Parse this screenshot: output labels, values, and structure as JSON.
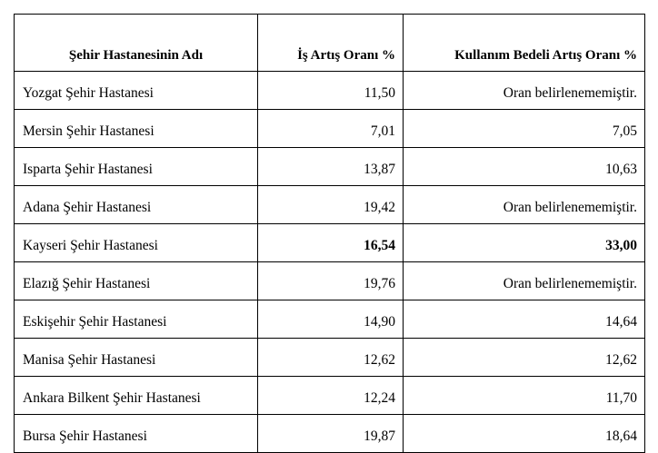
{
  "table": {
    "headers": {
      "name": "Şehir Hastanesinin Adı",
      "work_increase": "İş Artış Oranı %",
      "usage_fee_increase": "Kullanım Bedeli Artış Oranı %"
    },
    "rows": [
      {
        "name": "Yozgat Şehir Hastanesi",
        "work_increase": "11,50",
        "usage_fee_increase": "Oran belirlenememiştir."
      },
      {
        "name": "Mersin Şehir Hastanesi",
        "work_increase": "7,01",
        "usage_fee_increase": "7,05"
      },
      {
        "name": "Isparta Şehir Hastanesi",
        "work_increase": "13,87",
        "usage_fee_increase": "10,63"
      },
      {
        "name": "Adana Şehir Hastanesi",
        "work_increase": "19,42",
        "usage_fee_increase": "Oran belirlenememiştir."
      },
      {
        "name": "Kayseri Şehir Hastanesi",
        "work_increase": "16,54",
        "usage_fee_increase": "33,00"
      },
      {
        "name": "Elazığ Şehir Hastanesi",
        "work_increase": "19,76",
        "usage_fee_increase": "Oran belirlenememiştir."
      },
      {
        "name": "Eskişehir Şehir Hastanesi",
        "work_increase": "14,90",
        "usage_fee_increase": "14,64"
      },
      {
        "name": "Manisa Şehir Hastanesi",
        "work_increase": "12,62",
        "usage_fee_increase": "12,62"
      },
      {
        "name": "Ankara Bilkent Şehir Hastanesi",
        "work_increase": "12,24",
        "usage_fee_increase": "11,70"
      },
      {
        "name": "Bursa Şehir Hastanesi",
        "work_increase": "19,87",
        "usage_fee_increase": "18,64"
      }
    ]
  }
}
